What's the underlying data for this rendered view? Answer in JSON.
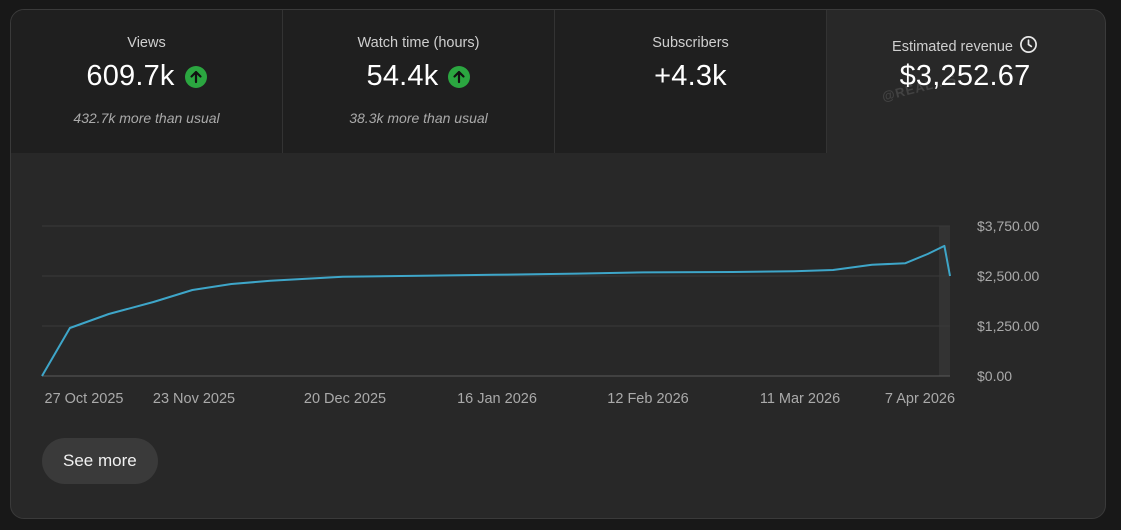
{
  "metrics": [
    {
      "label": "Views",
      "value": "609.7k",
      "trend": "up",
      "note": "432.7k more than usual"
    },
    {
      "label": "Watch time (hours)",
      "value": "54.4k",
      "trend": "up",
      "note": "38.3k more than usual"
    },
    {
      "label": "Subscribers",
      "value": "+4.3k",
      "trend": "",
      "note": ""
    },
    {
      "label": "Estimated revenue",
      "value": "$3,252.67",
      "trend": "",
      "note": ""
    }
  ],
  "watermark": "@REAL...S",
  "colors": {
    "line": "#3ea6c9",
    "up_badge": "#2ba640",
    "background": "#282828"
  },
  "see_more_label": "See more",
  "chart_data": {
    "type": "line",
    "series": [
      {
        "x": [
          "2025-10-27",
          "2025-11-01",
          "2025-11-08",
          "2025-11-16",
          "2025-11-23",
          "2025-11-30",
          "2025-12-07",
          "2025-12-20",
          "2026-01-05",
          "2026-01-16",
          "2026-01-31",
          "2026-02-12",
          "2026-02-28",
          "2026-03-11",
          "2026-03-18",
          "2026-03-25",
          "2026-03-31",
          "2026-04-04",
          "2026-04-07",
          "2026-04-08"
        ],
        "values": [
          0,
          1200,
          1550,
          1850,
          2150,
          2300,
          2380,
          2480,
          2510,
          2530,
          2560,
          2590,
          2600,
          2620,
          2650,
          2780,
          2820,
          3050,
          3252.67,
          2500
        ]
      }
    ],
    "xticks": [
      "27 Oct 2025",
      "23 Nov 2025",
      "20 Dec 2025",
      "16 Jan 2026",
      "12 Feb 2026",
      "11 Mar 2026",
      "7 Apr 2026"
    ],
    "yticks": [
      "$0.00",
      "$1,250.00",
      "$2,500.00",
      "$3,750.00"
    ],
    "ylim": [
      0,
      3750
    ],
    "grid": true
  }
}
